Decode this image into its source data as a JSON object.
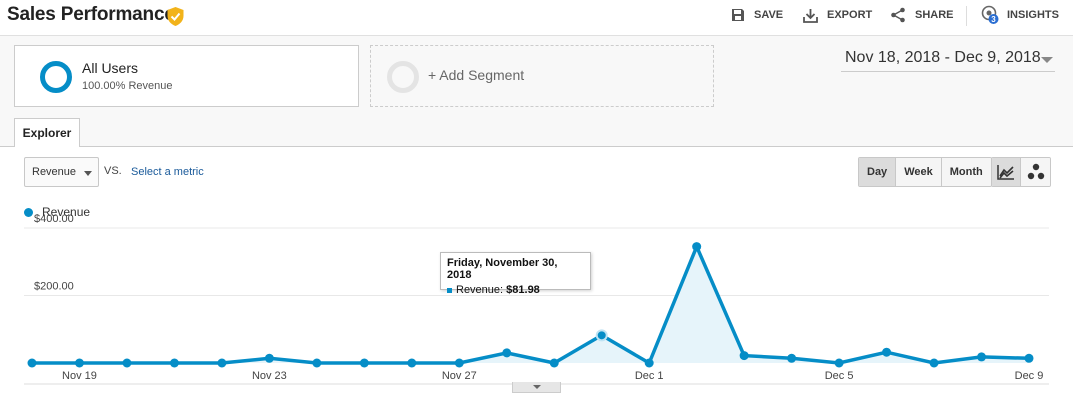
{
  "header": {
    "title": "Sales Performance",
    "actions": {
      "save": "SAVE",
      "export": "EXPORT",
      "share": "SHARE",
      "insights": "INSIGHTS",
      "insights_badge": "3"
    }
  },
  "segments": {
    "active": {
      "name": "All Users",
      "sub": "100.00% Revenue"
    },
    "add_label": "+ Add Segment"
  },
  "date_range": "Nov 18, 2018 - Dec 9, 2018",
  "tabs": [
    {
      "label": "Explorer",
      "active": true
    }
  ],
  "controls": {
    "metric": "Revenue",
    "vs": "VS.",
    "select_metric": "Select a metric",
    "granularity": [
      "Day",
      "Week",
      "Month"
    ],
    "granularity_active": "Day"
  },
  "colors": {
    "accent": "#058dc7",
    "area_fill": "#e6f4fa",
    "verified": "#f2b31a",
    "insights_badge": "#2a6ed2"
  },
  "tooltip": {
    "date": "Friday, November 30, 2018",
    "label": "Revenue:",
    "value": "$81.98"
  },
  "chart_data": {
    "type": "area",
    "legend": [
      "Revenue"
    ],
    "series": [
      {
        "name": "Revenue",
        "x": [
          "Nov 18",
          "Nov 19",
          "Nov 20",
          "Nov 21",
          "Nov 22",
          "Nov 23",
          "Nov 24",
          "Nov 25",
          "Nov 26",
          "Nov 27",
          "Nov 28",
          "Nov 29",
          "Nov 30",
          "Dec 1",
          "Dec 2",
          "Dec 3",
          "Dec 4",
          "Dec 5",
          "Dec 6",
          "Dec 7",
          "Dec 8",
          "Dec 9"
        ],
        "values": [
          0,
          0,
          0,
          0,
          0,
          14,
          0,
          0,
          0,
          0,
          30,
          0,
          82,
          0,
          345,
          22,
          14,
          0,
          32,
          0,
          18,
          14
        ]
      }
    ],
    "x_tick_labels": [
      "Nov 19",
      "Nov 23",
      "Nov 27",
      "Dec 1",
      "Dec 5",
      "Dec 9"
    ],
    "x_tick_indices": [
      1,
      5,
      9,
      13,
      17,
      21
    ],
    "y_tick_labels": [
      "$200.00",
      "$400.00"
    ],
    "y_tick_values": [
      200,
      400
    ],
    "ylim": [
      0,
      400
    ],
    "grid": true,
    "highlight_index": 12,
    "legend_position": "top-left"
  }
}
